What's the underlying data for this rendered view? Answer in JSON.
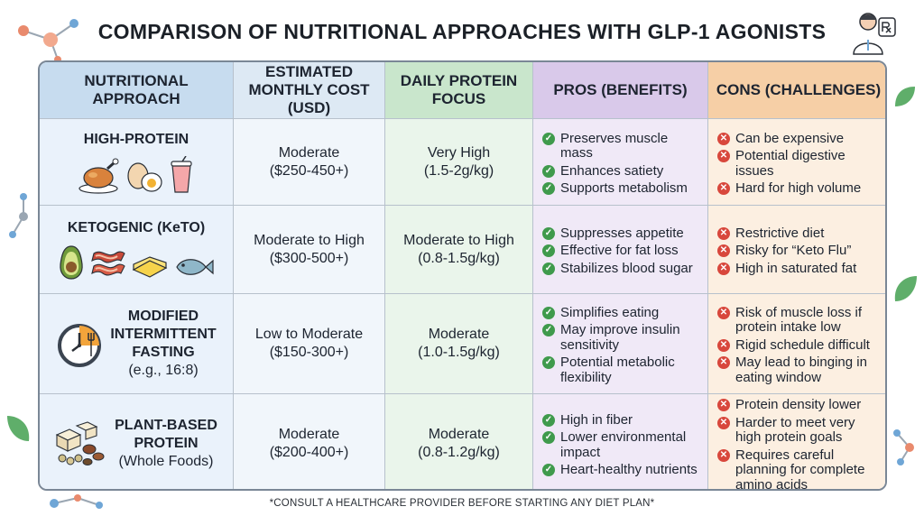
{
  "title": "COMPARISON OF NUTRITIONAL APPROACHES WITH GLP-1 AGONISTS",
  "headers": [
    "NUTRITIONAL APPROACH",
    "ESTIMATED MONTHLY COST (USD)",
    "DAILY PROTEIN FOCUS",
    "PROS (BENEFITS)",
    "CONS (CHALLENGES)"
  ],
  "rows": [
    {
      "approach": "HIGH-PROTEIN",
      "approach_sub": "",
      "cost": [
        "Moderate",
        "($250-450+)"
      ],
      "protein": [
        "Very High",
        "(1.5-2g/kg)"
      ],
      "pros": [
        "Preserves muscle mass",
        "Enhances satiety",
        "Supports metabolism"
      ],
      "cons": [
        "Can be expensive",
        "Potential digestive issues",
        "Hard for high volume"
      ],
      "icons": [
        "roast-chicken-icon",
        "eggs-icon",
        "protein-shake-icon"
      ]
    },
    {
      "approach": "KETOGENIC (KeTO)",
      "approach_sub": "",
      "cost": [
        "Moderate to High",
        "($300-500+)"
      ],
      "protein": [
        "Moderate to High",
        "(0.8-1.5g/kg)"
      ],
      "pros": [
        "Suppresses appetite",
        "Effective for fat loss",
        "Stabilizes blood sugar"
      ],
      "cons": [
        "Restrictive diet",
        "Risky for “Keto Flu”",
        "High in saturated fat"
      ],
      "icons": [
        "avocado-icon",
        "bacon-icon",
        "butter-icon",
        "fish-icon"
      ]
    },
    {
      "approach": "MODIFIED INTERMITTENT FASTING",
      "approach_sub": "(e.g., 16:8)",
      "cost": [
        "Low to Moderate",
        "($150-300+)"
      ],
      "protein": [
        "Moderate",
        "(1.0-1.5g/kg)"
      ],
      "pros": [
        "Simplifies eating",
        "May improve insulin sensitivity",
        "Potential metabolic flexibility"
      ],
      "cons": [
        "Risk of muscle loss if protein intake low",
        "Rigid schedule difficult",
        "May lead to binging in eating window"
      ],
      "icons": [
        "clock-fork-icon"
      ]
    },
    {
      "approach": "PLANT-BASED PROTEIN",
      "approach_sub": "(Whole Foods)",
      "cost": [
        "Moderate",
        "($200-400+)"
      ],
      "protein": [
        "Moderate",
        "(0.8-1.2g/kg)"
      ],
      "pros": [
        "High in fiber",
        "Lower environmental impact",
        "Heart-healthy nutrients"
      ],
      "cons": [
        "Protein density lower",
        "Harder to meet very high protein goals",
        "Requires careful planning for complete amino acids"
      ],
      "icons": [
        "tofu-legumes-icon"
      ]
    }
  ],
  "footer": "*CONSULT A HEALTHCARE PROVIDER BEFORE STARTING ANY DIET PLAN*",
  "colors": {
    "header_approach": "#c7dcef",
    "header_cost": "#dde9f4",
    "header_protein": "#c9e6cc",
    "header_pros": "#d9c9ea",
    "header_cons": "#f6cfa6",
    "check": "#3f9a4c",
    "cross": "#d8473c"
  }
}
